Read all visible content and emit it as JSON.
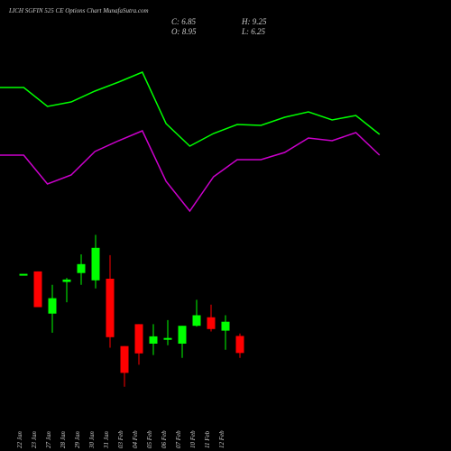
{
  "chart_data": [
    {
      "type": "line",
      "ylim": [
        0,
        25
      ],
      "series": [
        {
          "color": "#00ff00",
          "values": [
            15.3,
            15.3,
            13.2,
            13.7,
            14.9,
            15.9,
            17.0,
            11.3,
            8.8,
            10.2,
            11.2,
            11.1,
            12.0,
            12.6,
            11.7,
            12.2,
            10.1
          ]
        },
        {
          "color": "#cc00cc",
          "values": [
            7.8,
            7.8,
            4.6,
            5.6,
            8.2,
            9.4,
            10.5,
            4.9,
            1.6,
            5.4,
            7.3,
            7.3,
            8.1,
            9.7,
            9.4,
            10.3,
            7.8
          ]
        }
      ]
    },
    {
      "type": "candlestick",
      "title": "LICH      SGFIN 525 CE Options  Chart MunafaSutra.com",
      "ohlc_labels": [
        "C: 6.85",
        "H: 9.25",
        "O: 8.95",
        "L: 6.25"
      ],
      "categories": [
        "22 Jan",
        "23 Jan",
        "27 Jan",
        "28 Jan",
        "29 Jan",
        "30 Jan",
        "31 Jan",
        "03 Feb",
        "04 Feb",
        "05 Feb",
        "06 Feb",
        "07 Feb",
        "10 Feb",
        "11 Feb",
        "12 Feb",
        null
      ],
      "open": [
        16.6,
        16.9,
        11.7,
        15.6,
        16.7,
        15.8,
        16.0,
        7.7,
        10.4,
        8.0,
        8.6,
        8.0,
        10.2,
        11.25,
        9.6,
        8.95
      ],
      "high": [
        16.6,
        16.9,
        15.25,
        16.1,
        19.0,
        21.4,
        18.9,
        7.7,
        10.4,
        10.4,
        10.9,
        10.2,
        13.4,
        12.8,
        11.5,
        9.25
      ],
      "low": [
        16.6,
        12.5,
        9.35,
        13.1,
        15.25,
        14.8,
        7.5,
        2.7,
        5.4,
        6.6,
        7.8,
        6.25,
        10.1,
        9.5,
        7.25,
        6.25
      ],
      "close": [
        16.6,
        12.5,
        13.6,
        15.9,
        17.8,
        19.8,
        8.8,
        4.4,
        6.8,
        8.9,
        8.7,
        10.2,
        11.5,
        9.8,
        10.7,
        6.85
      ],
      "up_color": "#00ff00",
      "down_color": "#ff0000",
      "ylim": [
        0,
        28
      ]
    }
  ]
}
